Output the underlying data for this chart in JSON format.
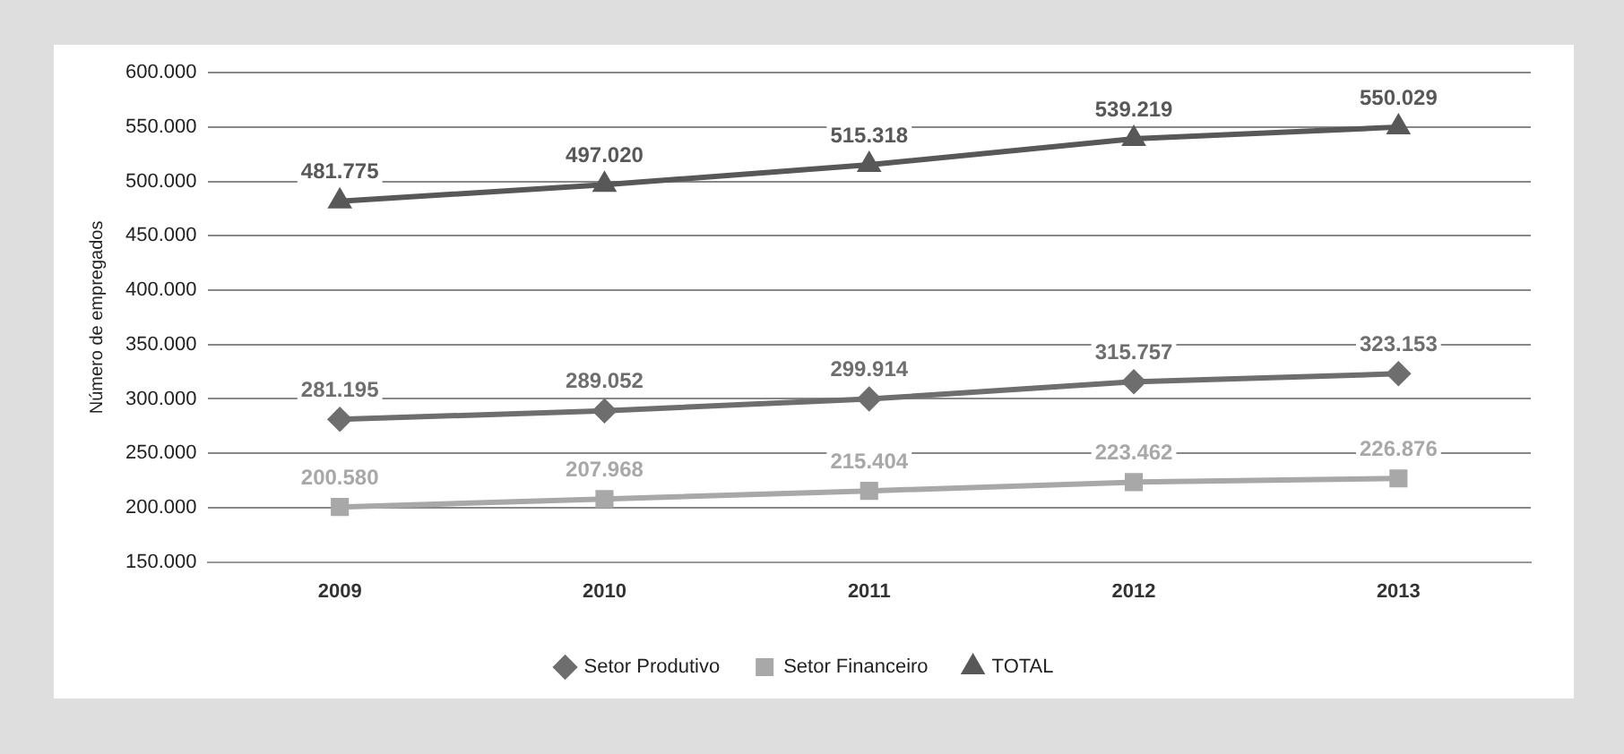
{
  "chart_data": {
    "type": "line",
    "ylabel": "Número de empregados",
    "categories": [
      "2009",
      "2010",
      "2011",
      "2012",
      "2013"
    ],
    "series": [
      {
        "name": "Setor Produtivo",
        "color": "#6e6e6e",
        "marker": "diamond",
        "values": [
          281195,
          289052,
          299914,
          315757,
          323153
        ],
        "value_labels": [
          "281.195",
          "289.052",
          "299.914",
          "315.757",
          "323.153"
        ]
      },
      {
        "name": "Setor Financeiro",
        "color": "#a8a8a8",
        "marker": "square",
        "values": [
          200580,
          207968,
          215404,
          223462,
          226876
        ],
        "value_labels": [
          "200.580",
          "207.968",
          "215.404",
          "223.462",
          "226.876"
        ]
      },
      {
        "name": "TOTAL",
        "color": "#585858",
        "marker": "triangle",
        "values": [
          481775,
          497020,
          515318,
          539219,
          550029
        ],
        "value_labels": [
          "481.775",
          "497.020",
          "515.318",
          "539.219",
          "550.029"
        ]
      }
    ],
    "ylim": [
      150000,
      600000
    ],
    "yticks": [
      {
        "value": 150000,
        "label": "150.000"
      },
      {
        "value": 200000,
        "label": "200.000"
      },
      {
        "value": 250000,
        "label": "250.000"
      },
      {
        "value": 300000,
        "label": "300.000"
      },
      {
        "value": 350000,
        "label": "350.000"
      },
      {
        "value": 400000,
        "label": "400.000"
      },
      {
        "value": 450000,
        "label": "450.000"
      },
      {
        "value": 500000,
        "label": "500.000"
      },
      {
        "value": 550000,
        "label": "550.000"
      },
      {
        "value": 600000,
        "label": "600.000"
      }
    ],
    "grid": "y",
    "legend": "bottom",
    "line_style": "solid"
  }
}
